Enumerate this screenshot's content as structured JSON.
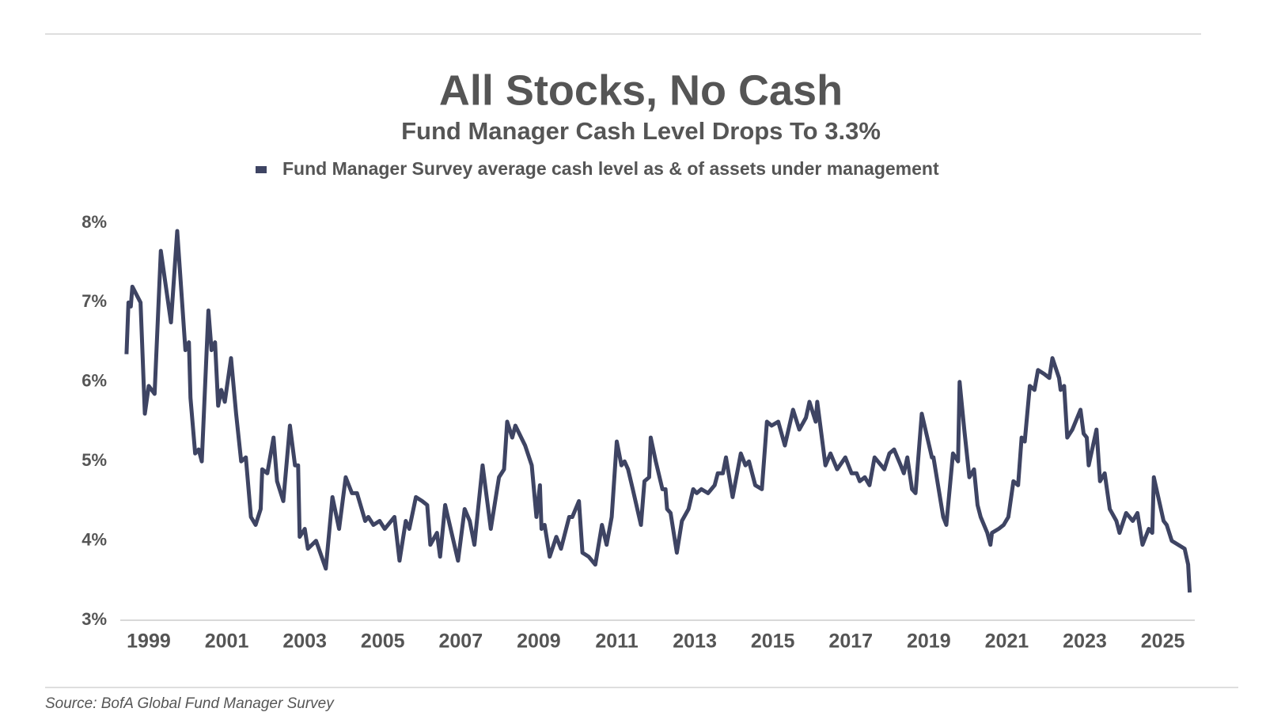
{
  "chart_data": {
    "type": "line",
    "title": "All Stocks, No Cash",
    "subtitle": "Fund Manager Cash Level Drops To 3.3%",
    "source": "Source: BofA Global Fund Manager Survey",
    "x": [
      1998.43,
      1998.48,
      1998.54,
      1998.58,
      1998.79,
      1998.9,
      1999.0,
      1999.15,
      1999.31,
      1999.57,
      1999.73,
      1999.94,
      2000.03,
      2000.07,
      2000.19,
      2000.28,
      2000.36,
      2000.53,
      2000.61,
      2000.7,
      2000.78,
      2000.86,
      2000.95,
      2001.11,
      2001.24,
      2001.37,
      2001.49,
      2001.62,
      2001.74,
      2001.87,
      2001.91,
      2002.04,
      2002.2,
      2002.29,
      2002.45,
      2002.62,
      2002.75,
      2002.83,
      2002.87,
      2003.0,
      2003.08,
      2003.29,
      2003.54,
      2003.71,
      2003.88,
      2004.05,
      2004.21,
      2004.34,
      2004.55,
      2004.63,
      2004.76,
      2004.92,
      2005.05,
      2005.3,
      2005.43,
      2005.59,
      2005.68,
      2005.85,
      2006.01,
      2006.14,
      2006.22,
      2006.39,
      2006.47,
      2006.6,
      2006.93,
      2007.1,
      2007.23,
      2007.35,
      2007.56,
      2007.77,
      2007.98,
      2008.11,
      2008.19,
      2008.32,
      2008.4,
      2008.65,
      2008.82,
      2008.94,
      2009.03,
      2009.07,
      2009.15,
      2009.28,
      2009.45,
      2009.57,
      2009.78,
      2009.86,
      2010.03,
      2010.12,
      2010.28,
      2010.45,
      2010.62,
      2010.74,
      2010.87,
      2011.0,
      2011.12,
      2011.2,
      2011.29,
      2011.41,
      2011.62,
      2011.71,
      2011.83,
      2011.87,
      2012.0,
      2012.17,
      2012.25,
      2012.29,
      2012.38,
      2012.54,
      2012.67,
      2012.84,
      2012.96,
      2013.05,
      2013.17,
      2013.34,
      2013.51,
      2013.59,
      2013.72,
      2013.8,
      2013.97,
      2014.18,
      2014.3,
      2014.39,
      2014.55,
      2014.72,
      2014.85,
      2014.97,
      2015.14,
      2015.31,
      2015.52,
      2015.68,
      2015.85,
      2015.94,
      2016.1,
      2016.14,
      2016.35,
      2016.48,
      2016.65,
      2016.86,
      2017.02,
      2017.15,
      2017.23,
      2017.36,
      2017.48,
      2017.61,
      2017.78,
      2017.86,
      2017.99,
      2018.11,
      2018.28,
      2018.36,
      2018.45,
      2018.57,
      2018.66,
      2018.82,
      2019.08,
      2019.12,
      2019.37,
      2019.45,
      2019.62,
      2019.75,
      2019.79,
      2019.91,
      2020.04,
      2020.16,
      2020.25,
      2020.33,
      2020.5,
      2020.58,
      2020.62,
      2020.79,
      2020.92,
      2021.04,
      2021.17,
      2021.29,
      2021.38,
      2021.46,
      2021.59,
      2021.71,
      2021.8,
      2021.96,
      2022.09,
      2022.17,
      2022.34,
      2022.38,
      2022.47,
      2022.55,
      2022.68,
      2022.89,
      2022.97,
      2023.05,
      2023.1,
      2023.3,
      2023.39,
      2023.51,
      2023.64,
      2023.81,
      2023.89,
      2024.06,
      2024.23,
      2024.35,
      2024.48,
      2024.64,
      2024.73,
      2024.77,
      2025.02,
      2025.1,
      2025.23,
      2025.56,
      2025.65,
      2025.69
    ],
    "series": [
      {
        "name": "Fund Manager Survey average cash level as & of assets under management",
        "color": "#3e4463",
        "values": [
          6.35,
          7.0,
          6.95,
          7.2,
          7.0,
          5.6,
          5.95,
          5.85,
          7.65,
          6.75,
          7.9,
          6.4,
          6.5,
          5.8,
          5.1,
          5.15,
          5.0,
          6.9,
          6.4,
          6.5,
          5.7,
          5.9,
          5.75,
          6.3,
          5.6,
          5.0,
          5.05,
          4.3,
          4.2,
          4.4,
          4.9,
          4.85,
          5.3,
          4.75,
          4.5,
          5.45,
          4.95,
          4.95,
          4.05,
          4.15,
          3.9,
          4.0,
          3.65,
          4.55,
          4.15,
          4.8,
          4.6,
          4.6,
          4.25,
          4.3,
          4.2,
          4.25,
          4.15,
          4.3,
          3.75,
          4.25,
          4.15,
          4.55,
          4.5,
          4.45,
          3.95,
          4.1,
          3.8,
          4.45,
          3.75,
          4.4,
          4.25,
          3.95,
          4.95,
          4.15,
          4.8,
          4.9,
          5.5,
          5.3,
          5.45,
          5.2,
          4.95,
          4.3,
          4.7,
          4.15,
          4.2,
          3.8,
          4.05,
          3.9,
          4.3,
          4.3,
          4.5,
          3.85,
          3.8,
          3.7,
          4.2,
          3.95,
          4.3,
          5.25,
          4.95,
          5.0,
          4.9,
          4.65,
          4.2,
          4.75,
          4.8,
          5.3,
          5.0,
          4.65,
          4.65,
          4.4,
          4.35,
          3.85,
          4.25,
          4.4,
          4.65,
          4.6,
          4.65,
          4.6,
          4.7,
          4.85,
          4.85,
          5.05,
          4.55,
          5.1,
          4.95,
          5.0,
          4.7,
          4.65,
          5.5,
          5.45,
          5.5,
          5.2,
          5.65,
          5.4,
          5.55,
          5.75,
          5.5,
          5.75,
          4.95,
          5.1,
          4.9,
          5.05,
          4.85,
          4.85,
          4.75,
          4.8,
          4.7,
          5.05,
          4.95,
          4.9,
          5.1,
          5.15,
          4.95,
          4.85,
          5.05,
          4.65,
          4.6,
          5.6,
          5.05,
          5.05,
          4.3,
          4.2,
          5.1,
          5.0,
          6.0,
          5.4,
          4.8,
          4.9,
          4.45,
          4.3,
          4.1,
          3.95,
          4.1,
          4.15,
          4.2,
          4.3,
          4.75,
          4.7,
          5.3,
          5.25,
          5.95,
          5.9,
          6.15,
          6.1,
          6.05,
          6.3,
          6.05,
          5.9,
          5.95,
          5.3,
          5.4,
          5.65,
          5.35,
          5.3,
          4.95,
          5.4,
          4.75,
          4.85,
          4.4,
          4.25,
          4.1,
          4.35,
          4.25,
          4.35,
          3.95,
          4.15,
          4.1,
          4.8,
          4.25,
          4.2,
          4.0,
          3.9,
          3.7,
          3.35
        ]
      }
    ],
    "xlim": [
      1998.27,
      2025.82
    ],
    "xticks": [
      1999,
      2001,
      2003,
      2005,
      2007,
      2009,
      2011,
      2013,
      2015,
      2017,
      2019,
      2021,
      2023,
      2025
    ],
    "ylim": [
      3,
      8
    ],
    "yticks": [
      {
        "value": 3,
        "label": "3%"
      },
      {
        "value": 4,
        "label": "4%"
      },
      {
        "value": 5,
        "label": "5%"
      },
      {
        "value": 6,
        "label": "6%"
      },
      {
        "value": 7,
        "label": "7%"
      },
      {
        "value": 8,
        "label": "8%"
      }
    ],
    "grid": false,
    "legend": "top"
  }
}
